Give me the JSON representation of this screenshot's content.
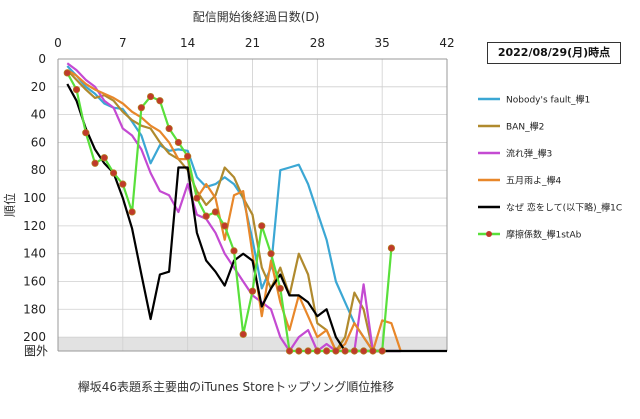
{
  "chart_data": {
    "type": "line",
    "title": "配信開始後経過日数(D)",
    "caption": "欅坂46表題系主要曲のiTunes Storeトップソング順位推移",
    "ylabel": "順位",
    "date_label": "2022/08/29(月)時点",
    "xlim": [
      0,
      42
    ],
    "x_ticks": [
      0,
      7,
      14,
      21,
      28,
      35,
      42
    ],
    "ylim": [
      0,
      210
    ],
    "y_ticks": [
      "0",
      "20",
      "40",
      "60",
      "80",
      "100",
      "120",
      "140",
      "160",
      "180",
      "200"
    ],
    "out_label": "圏外",
    "out_value": 210,
    "grid": true,
    "legend_position": "right",
    "series": [
      {
        "name": "Nobody's fault_欅1",
        "color": "#3ba7d4",
        "points": [
          [
            1,
            5
          ],
          [
            2,
            12
          ],
          [
            3,
            20
          ],
          [
            4,
            25
          ],
          [
            5,
            32
          ],
          [
            6,
            35
          ],
          [
            7,
            36
          ],
          [
            8,
            45
          ],
          [
            9,
            55
          ],
          [
            10,
            75
          ],
          [
            11,
            62
          ],
          [
            12,
            66
          ],
          [
            13,
            65
          ],
          [
            14,
            66
          ],
          [
            15,
            85
          ],
          [
            16,
            92
          ],
          [
            17,
            90
          ],
          [
            18,
            85
          ],
          [
            19,
            90
          ],
          [
            20,
            100
          ],
          [
            21,
            130
          ],
          [
            22,
            165
          ],
          [
            23,
            150
          ],
          [
            24,
            80
          ],
          [
            25,
            78
          ],
          [
            26,
            76
          ],
          [
            27,
            90
          ],
          [
            28,
            110
          ],
          [
            29,
            130
          ],
          [
            30,
            160
          ],
          [
            31,
            175
          ],
          [
            32,
            190
          ],
          [
            33,
            200
          ],
          [
            34,
            210
          ],
          [
            35,
            210
          ],
          [
            36,
            210
          ],
          [
            37,
            210
          ]
        ]
      },
      {
        "name": "BAN_欅2",
        "color": "#b08a2e",
        "points": [
          [
            1,
            8
          ],
          [
            2,
            15
          ],
          [
            3,
            22
          ],
          [
            4,
            28
          ],
          [
            5,
            26
          ],
          [
            6,
            30
          ],
          [
            7,
            38
          ],
          [
            8,
            44
          ],
          [
            9,
            48
          ],
          [
            10,
            50
          ],
          [
            11,
            60
          ],
          [
            12,
            68
          ],
          [
            13,
            72
          ],
          [
            14,
            80
          ],
          [
            15,
            95
          ],
          [
            16,
            105
          ],
          [
            17,
            98
          ],
          [
            18,
            78
          ],
          [
            19,
            85
          ],
          [
            20,
            100
          ],
          [
            21,
            112
          ],
          [
            22,
            150
          ],
          [
            23,
            165
          ],
          [
            24,
            150
          ],
          [
            25,
            170
          ],
          [
            26,
            140
          ],
          [
            27,
            155
          ],
          [
            28,
            190
          ],
          [
            29,
            195
          ],
          [
            30,
            210
          ],
          [
            31,
            200
          ],
          [
            32,
            168
          ],
          [
            33,
            180
          ],
          [
            34,
            210
          ],
          [
            35,
            210
          ],
          [
            36,
            210
          ],
          [
            37,
            210
          ]
        ]
      },
      {
        "name": "流れ弾_欅3",
        "color": "#c44ad2",
        "points": [
          [
            1,
            3
          ],
          [
            2,
            8
          ],
          [
            3,
            15
          ],
          [
            4,
            20
          ],
          [
            5,
            30
          ],
          [
            6,
            35
          ],
          [
            7,
            50
          ],
          [
            8,
            55
          ],
          [
            9,
            65
          ],
          [
            10,
            82
          ],
          [
            11,
            95
          ],
          [
            12,
            98
          ],
          [
            13,
            110
          ],
          [
            14,
            90
          ],
          [
            15,
            112
          ],
          [
            16,
            115
          ],
          [
            17,
            125
          ],
          [
            18,
            140
          ],
          [
            19,
            150
          ],
          [
            20,
            160
          ],
          [
            21,
            170
          ],
          [
            22,
            175
          ],
          [
            23,
            180
          ],
          [
            24,
            200
          ],
          [
            25,
            210
          ],
          [
            26,
            200
          ],
          [
            27,
            195
          ],
          [
            28,
            210
          ],
          [
            29,
            205
          ],
          [
            30,
            210
          ],
          [
            31,
            210
          ],
          [
            32,
            210
          ],
          [
            33,
            162
          ],
          [
            34,
            210
          ],
          [
            35,
            210
          ],
          [
            36,
            210
          ],
          [
            37,
            210
          ]
        ]
      },
      {
        "name": "五月雨よ_欅4",
        "color": "#e8872a",
        "points": [
          [
            1,
            8
          ],
          [
            2,
            12
          ],
          [
            3,
            18
          ],
          [
            4,
            22
          ],
          [
            5,
            25
          ],
          [
            6,
            28
          ],
          [
            7,
            32
          ],
          [
            8,
            38
          ],
          [
            9,
            42
          ],
          [
            10,
            48
          ],
          [
            11,
            52
          ],
          [
            12,
            60
          ],
          [
            13,
            72
          ],
          [
            14,
            72
          ],
          [
            15,
            100
          ],
          [
            16,
            90
          ],
          [
            17,
            100
          ],
          [
            18,
            130
          ],
          [
            19,
            98
          ],
          [
            20,
            95
          ],
          [
            21,
            140
          ],
          [
            22,
            185
          ],
          [
            23,
            145
          ],
          [
            24,
            175
          ],
          [
            25,
            195
          ],
          [
            26,
            170
          ],
          [
            27,
            185
          ],
          [
            28,
            200
          ],
          [
            29,
            195
          ],
          [
            30,
            210
          ],
          [
            31,
            205
          ],
          [
            32,
            190
          ],
          [
            33,
            200
          ],
          [
            34,
            210
          ],
          [
            35,
            188
          ],
          [
            36,
            190
          ],
          [
            37,
            210
          ]
        ]
      },
      {
        "name": "なぜ 恋をして(以下略)_欅1C",
        "color": "#000000",
        "points": [
          [
            1,
            18
          ],
          [
            2,
            30
          ],
          [
            3,
            50
          ],
          [
            4,
            65
          ],
          [
            5,
            75
          ],
          [
            6,
            82
          ],
          [
            7,
            100
          ],
          [
            8,
            122
          ],
          [
            9,
            155
          ],
          [
            10,
            187
          ],
          [
            11,
            155
          ],
          [
            12,
            153
          ],
          [
            13,
            78
          ],
          [
            14,
            78
          ],
          [
            15,
            125
          ],
          [
            16,
            145
          ],
          [
            17,
            153
          ],
          [
            18,
            163
          ],
          [
            19,
            145
          ],
          [
            20,
            140
          ],
          [
            21,
            145
          ],
          [
            22,
            178
          ],
          [
            23,
            165
          ],
          [
            24,
            155
          ],
          [
            25,
            170
          ],
          [
            26,
            170
          ],
          [
            27,
            175
          ],
          [
            28,
            185
          ],
          [
            29,
            180
          ],
          [
            30,
            200
          ],
          [
            31,
            210
          ],
          [
            32,
            210
          ],
          [
            33,
            210
          ],
          [
            34,
            210
          ],
          [
            35,
            210
          ],
          [
            36,
            210
          ],
          [
            37,
            210
          ],
          [
            38,
            210
          ],
          [
            39,
            210
          ],
          [
            40,
            210
          ],
          [
            41,
            210
          ],
          [
            42,
            210
          ]
        ]
      },
      {
        "name": "摩擦係数_欅1stAb",
        "color": "#59e03b",
        "marker": "circle",
        "marker_color": "#c0392b",
        "points": [
          [
            1,
            10
          ],
          [
            2,
            22
          ],
          [
            3,
            53
          ],
          [
            4,
            75
          ],
          [
            5,
            71
          ],
          [
            6,
            82
          ],
          [
            7,
            90
          ],
          [
            8,
            110
          ],
          [
            9,
            35
          ],
          [
            10,
            27
          ],
          [
            11,
            30
          ],
          [
            12,
            50
          ],
          [
            13,
            60
          ],
          [
            14,
            70
          ],
          [
            15,
            100
          ],
          [
            16,
            113
          ],
          [
            17,
            110
          ],
          [
            18,
            120
          ],
          [
            19,
            138
          ],
          [
            20,
            198
          ],
          [
            21,
            167
          ],
          [
            22,
            120
          ],
          [
            23,
            140
          ],
          [
            24,
            165
          ],
          [
            25,
            210
          ],
          [
            26,
            210
          ],
          [
            27,
            210
          ],
          [
            28,
            210
          ],
          [
            29,
            210
          ],
          [
            30,
            210
          ],
          [
            31,
            210
          ],
          [
            32,
            210
          ],
          [
            33,
            210
          ],
          [
            34,
            210
          ],
          [
            35,
            210
          ],
          [
            36,
            136
          ]
        ]
      }
    ]
  }
}
